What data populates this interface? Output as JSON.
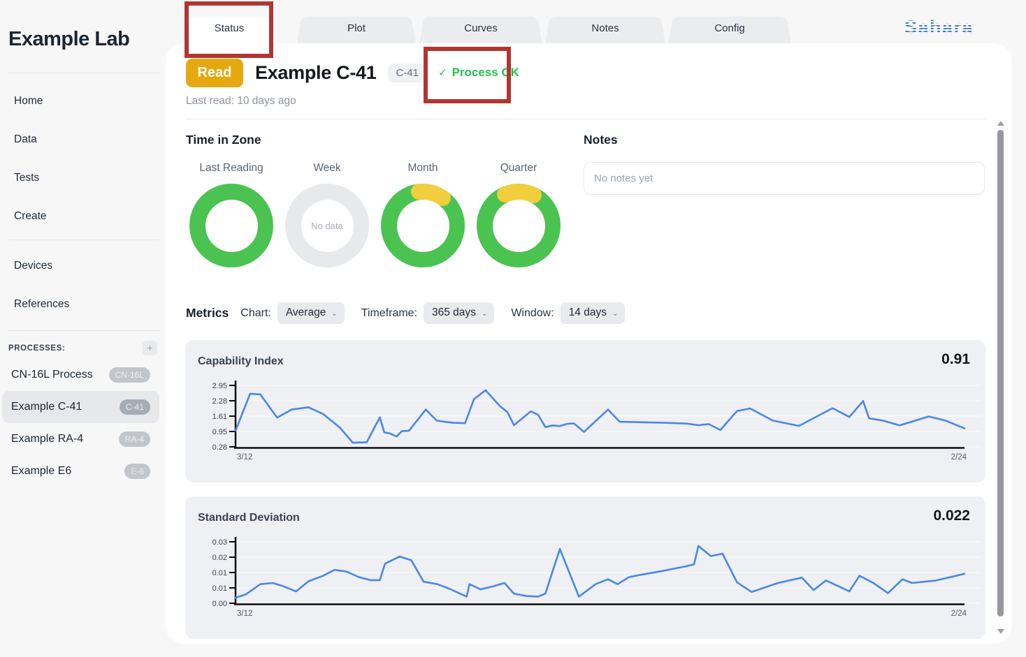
{
  "app": {
    "logo_text": "Sahara"
  },
  "sidebar": {
    "title": "Example Lab",
    "nav_primary": [
      {
        "label": "Home"
      },
      {
        "label": "Data"
      },
      {
        "label": "Tests"
      },
      {
        "label": "Create"
      }
    ],
    "nav_secondary": [
      {
        "label": "Devices"
      },
      {
        "label": "References"
      }
    ],
    "processes_heading": "PROCESSES:",
    "add_process_button": "+",
    "processes": [
      {
        "name": "CN-16L Process",
        "badge": "CN-16L",
        "selected": false
      },
      {
        "name": "Example C-41",
        "badge": "C-41",
        "selected": true
      },
      {
        "name": "Example RA-4",
        "badge": "RA-4",
        "selected": false
      },
      {
        "name": "Example E6",
        "badge": "E-6",
        "selected": false
      }
    ]
  },
  "tabs": [
    {
      "label": "Status",
      "active": true
    },
    {
      "label": "Plot",
      "active": false
    },
    {
      "label": "Curves",
      "active": false
    },
    {
      "label": "Notes",
      "active": false
    },
    {
      "label": "Config",
      "active": false
    }
  ],
  "header": {
    "read_button_label": "Read",
    "process_title": "Example C-41",
    "process_badge": "C-41",
    "status_check": "✓",
    "status_text": "Process OK",
    "last_read": "Last read: 10 days ago"
  },
  "time_in_zone": {
    "heading": "Time in Zone",
    "donuts": [
      {
        "label": "Last Reading",
        "state": "full"
      },
      {
        "label": "Week",
        "state": "empty",
        "empty_text": "No data"
      },
      {
        "label": "Month",
        "state": "partial",
        "arc_start_deg": -6,
        "arc_end_deg": 36
      },
      {
        "label": "Quarter",
        "state": "partial",
        "arc_start_deg": -24,
        "arc_end_deg": 26
      }
    ]
  },
  "notes": {
    "heading": "Notes",
    "placeholder": "No notes yet"
  },
  "metrics": {
    "heading": "Metrics",
    "controls": [
      {
        "label": "Chart:",
        "value": "Average"
      },
      {
        "label": "Timeframe:",
        "value": "365 days"
      },
      {
        "label": "Window:",
        "value": "14 days"
      }
    ]
  },
  "annotations": [
    {
      "target": "status-tab"
    },
    {
      "target": "process-ok-status"
    }
  ],
  "colors": {
    "line_blue": "#4a87e8",
    "status_green": "#21c24f",
    "annotation_red": "#b23530",
    "read_button_yellow": "#e5a910",
    "zone_green": "#4ac351",
    "zone_yellow": "#f0ce3d",
    "zone_empty": "#e8e9eb",
    "logo_blue": "#3b79c9",
    "chart_card_bg": "#eef0f3",
    "gridline": "#f6f7f9",
    "axis": "#0b0c0e"
  },
  "chart_data": [
    {
      "type": "line",
      "title": "Capability Index",
      "stat_value": "0.91",
      "x_tick_labels": [
        "3/12",
        "2/24"
      ],
      "y_tick_labels": [
        "2.95",
        "2.28",
        "1.61",
        "0.95",
        "0.28"
      ],
      "ylim": [
        0.28,
        2.95
      ],
      "grid": true,
      "legend": "none",
      "series": [
        {
          "name": "Capability Index",
          "points": [
            [
              0.0,
              0.98
            ],
            [
              0.02,
              2.59
            ],
            [
              0.034,
              2.56
            ],
            [
              0.057,
              1.55
            ],
            [
              0.077,
              1.9
            ],
            [
              0.1,
              2.0
            ],
            [
              0.12,
              1.71
            ],
            [
              0.143,
              1.12
            ],
            [
              0.161,
              0.46
            ],
            [
              0.18,
              0.48
            ],
            [
              0.198,
              1.56
            ],
            [
              0.204,
              0.91
            ],
            [
              0.212,
              0.86
            ],
            [
              0.221,
              0.73
            ],
            [
              0.228,
              0.96
            ],
            [
              0.238,
              0.98
            ],
            [
              0.261,
              1.9
            ],
            [
              0.276,
              1.42
            ],
            [
              0.287,
              1.37
            ],
            [
              0.3,
              1.32
            ],
            [
              0.315,
              1.31
            ],
            [
              0.327,
              2.35
            ],
            [
              0.343,
              2.74
            ],
            [
              0.363,
              2.04
            ],
            [
              0.373,
              1.79
            ],
            [
              0.382,
              1.22
            ],
            [
              0.405,
              1.82
            ],
            [
              0.415,
              1.68
            ],
            [
              0.425,
              1.14
            ],
            [
              0.435,
              1.21
            ],
            [
              0.445,
              1.18
            ],
            [
              0.455,
              1.28
            ],
            [
              0.464,
              1.3
            ],
            [
              0.478,
              0.93
            ],
            [
              0.511,
              1.9
            ],
            [
              0.527,
              1.37
            ],
            [
              0.553,
              1.35
            ],
            [
              0.586,
              1.33
            ],
            [
              0.619,
              1.29
            ],
            [
              0.635,
              1.22
            ],
            [
              0.649,
              1.27
            ],
            [
              0.665,
              1.01
            ],
            [
              0.688,
              1.84
            ],
            [
              0.706,
              1.95
            ],
            [
              0.737,
              1.42
            ],
            [
              0.773,
              1.19
            ],
            [
              0.819,
              1.96
            ],
            [
              0.842,
              1.58
            ],
            [
              0.861,
              2.27
            ],
            [
              0.869,
              1.52
            ],
            [
              0.888,
              1.42
            ],
            [
              0.911,
              1.21
            ],
            [
              0.951,
              1.6
            ],
            [
              0.974,
              1.42
            ],
            [
              1.0,
              1.08
            ]
          ]
        }
      ]
    },
    {
      "type": "line",
      "title": "Standard Deviation",
      "stat_value": "0.022",
      "x_tick_labels": [
        "3/12",
        "2/24"
      ],
      "y_tick_labels": [
        "0.03",
        "0.02",
        "0.01",
        "0.01",
        "0.00"
      ],
      "ylim": [
        0,
        0.03
      ],
      "grid": true,
      "legend": "none",
      "series": [
        {
          "name": "Standard Deviation",
          "points": [
            [
              0.0,
              0.0027
            ],
            [
              0.014,
              0.0043
            ],
            [
              0.034,
              0.0093
            ],
            [
              0.051,
              0.0099
            ],
            [
              0.064,
              0.0085
            ],
            [
              0.083,
              0.0058
            ],
            [
              0.1,
              0.0107
            ],
            [
              0.12,
              0.0134
            ],
            [
              0.136,
              0.0163
            ],
            [
              0.152,
              0.0155
            ],
            [
              0.169,
              0.0128
            ],
            [
              0.185,
              0.0113
            ],
            [
              0.198,
              0.0113
            ],
            [
              0.205,
              0.0193
            ],
            [
              0.225,
              0.0228
            ],
            [
              0.241,
              0.021
            ],
            [
              0.258,
              0.0105
            ],
            [
              0.277,
              0.0093
            ],
            [
              0.294,
              0.007
            ],
            [
              0.317,
              0.0032
            ],
            [
              0.321,
              0.0093
            ],
            [
              0.336,
              0.0068
            ],
            [
              0.353,
              0.0082
            ],
            [
              0.369,
              0.0099
            ],
            [
              0.382,
              0.0047
            ],
            [
              0.399,
              0.0035
            ],
            [
              0.415,
              0.0032
            ],
            [
              0.425,
              0.0047
            ],
            [
              0.445,
              0.0265
            ],
            [
              0.471,
              0.0032
            ],
            [
              0.494,
              0.0093
            ],
            [
              0.511,
              0.0117
            ],
            [
              0.524,
              0.0093
            ],
            [
              0.54,
              0.0128
            ],
            [
              0.553,
              0.0137
            ],
            [
              0.586,
              0.0158
            ],
            [
              0.619,
              0.0181
            ],
            [
              0.629,
              0.019
            ],
            [
              0.635,
              0.028
            ],
            [
              0.652,
              0.023
            ],
            [
              0.668,
              0.0242
            ],
            [
              0.688,
              0.0102
            ],
            [
              0.708,
              0.0055
            ],
            [
              0.744,
              0.0099
            ],
            [
              0.777,
              0.0125
            ],
            [
              0.793,
              0.0064
            ],
            [
              0.81,
              0.0111
            ],
            [
              0.826,
              0.0085
            ],
            [
              0.842,
              0.0058
            ],
            [
              0.856,
              0.0134
            ],
            [
              0.875,
              0.0099
            ],
            [
              0.895,
              0.0049
            ],
            [
              0.915,
              0.0117
            ],
            [
              0.928,
              0.0099
            ],
            [
              0.961,
              0.0111
            ],
            [
              1.0,
              0.0144
            ]
          ]
        }
      ]
    }
  ]
}
